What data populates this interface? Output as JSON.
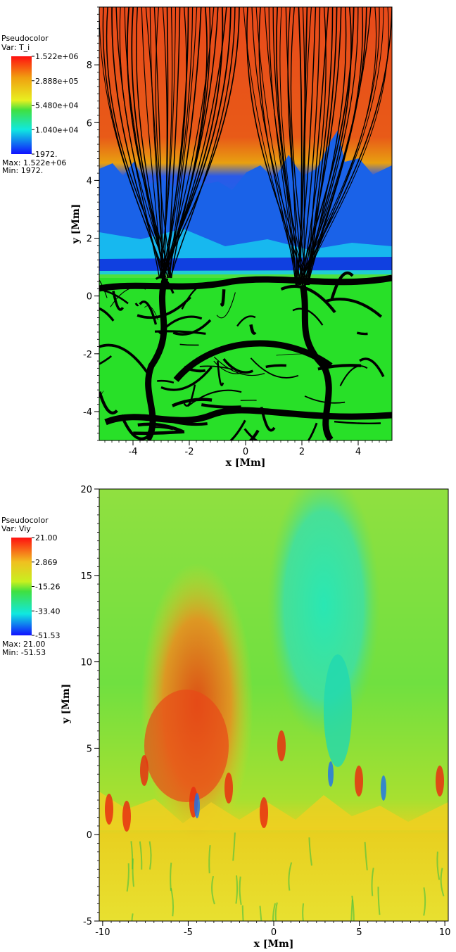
{
  "chart_data": [
    {
      "type": "heatmap",
      "plot_type": "Pseudocolor",
      "variable": "Var: T_i",
      "colorbar_ticks": [
        "1.522e+06",
        "2.888e+05",
        "5.480e+04",
        "1.040e+04",
        "1972."
      ],
      "max_label": "Max:  1.522e+06",
      "min_label": "Min:  1972.",
      "xlabel": "x [Mm]",
      "ylabel": "y [Mm]",
      "xlim": [
        -5.2,
        5.2
      ],
      "ylim": [
        -5,
        10
      ],
      "xticks": [
        "-4",
        "-2",
        "0",
        "2",
        "4"
      ],
      "yticks": [
        "-4",
        "-2",
        "0",
        "2",
        "4",
        "6",
        "8"
      ],
      "colors": {
        "max": "#e8481c",
        "high": "#e89a10",
        "mid": "#22dd22",
        "low": "#0ad8f0",
        "min": "#1010ff"
      }
    },
    {
      "type": "heatmap",
      "plot_type": "Pseudocolor",
      "variable": "Var: Viy",
      "colorbar_ticks": [
        "21.00",
        "2.869",
        "-15.26",
        "-33.40",
        "-51.53"
      ],
      "max_label": "Max:  21.00",
      "min_label": "Min: -51.53",
      "xlabel": "x [Mm]",
      "ylabel": "y [Mm]",
      "xlim": [
        -10.2,
        10.2
      ],
      "ylim": [
        -5,
        20
      ],
      "xticks": [
        "-10",
        "-5",
        "0",
        "5",
        "10"
      ],
      "yticks": [
        "-5",
        "0",
        "5",
        "10",
        "15",
        "20"
      ],
      "colors": {
        "max": "#e8300a",
        "high": "#e8c020",
        "mid": "#40e040",
        "low": "#20e8c8",
        "min": "#2040ff"
      }
    }
  ]
}
